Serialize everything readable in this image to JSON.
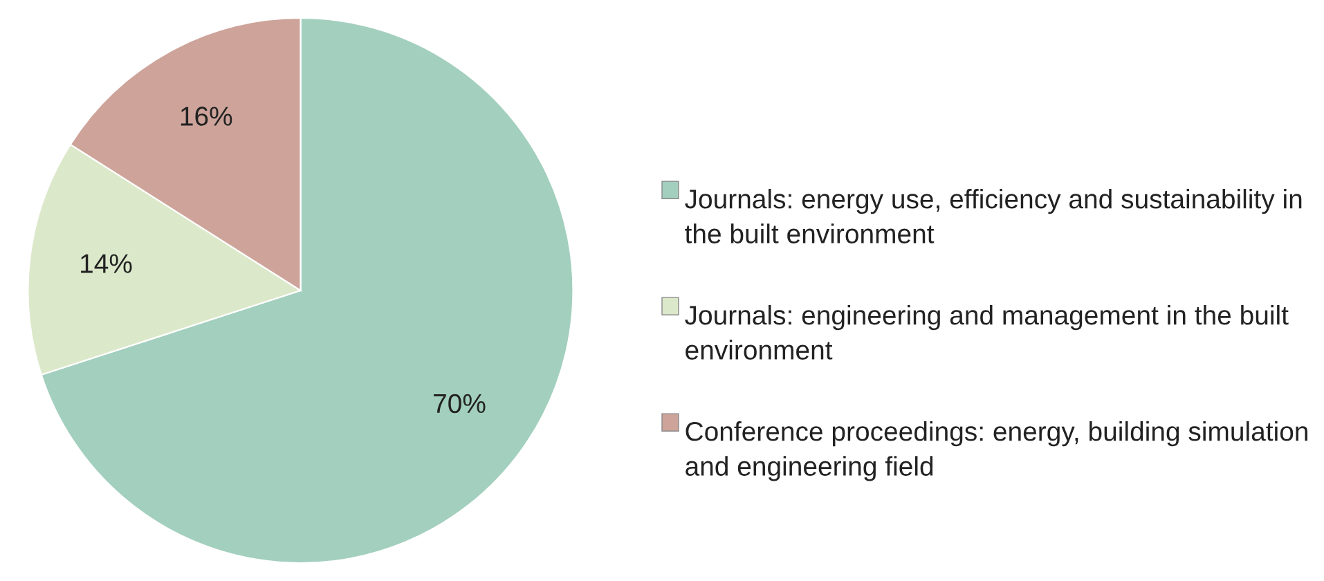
{
  "chart_data": {
    "type": "pie",
    "categories": [
      "Journals: energy use, efficiency and sustainability in the built environment",
      "Journals: engineering and management in the built environment",
      "Conference proceedings: energy, building simulation and engineering field"
    ],
    "values": [
      70,
      14,
      16
    ],
    "value_labels": [
      "70%",
      "14%",
      "16%"
    ],
    "colors": [
      "#a3cfbe",
      "#dce8ca",
      "#cda39a"
    ],
    "legend": "right"
  }
}
